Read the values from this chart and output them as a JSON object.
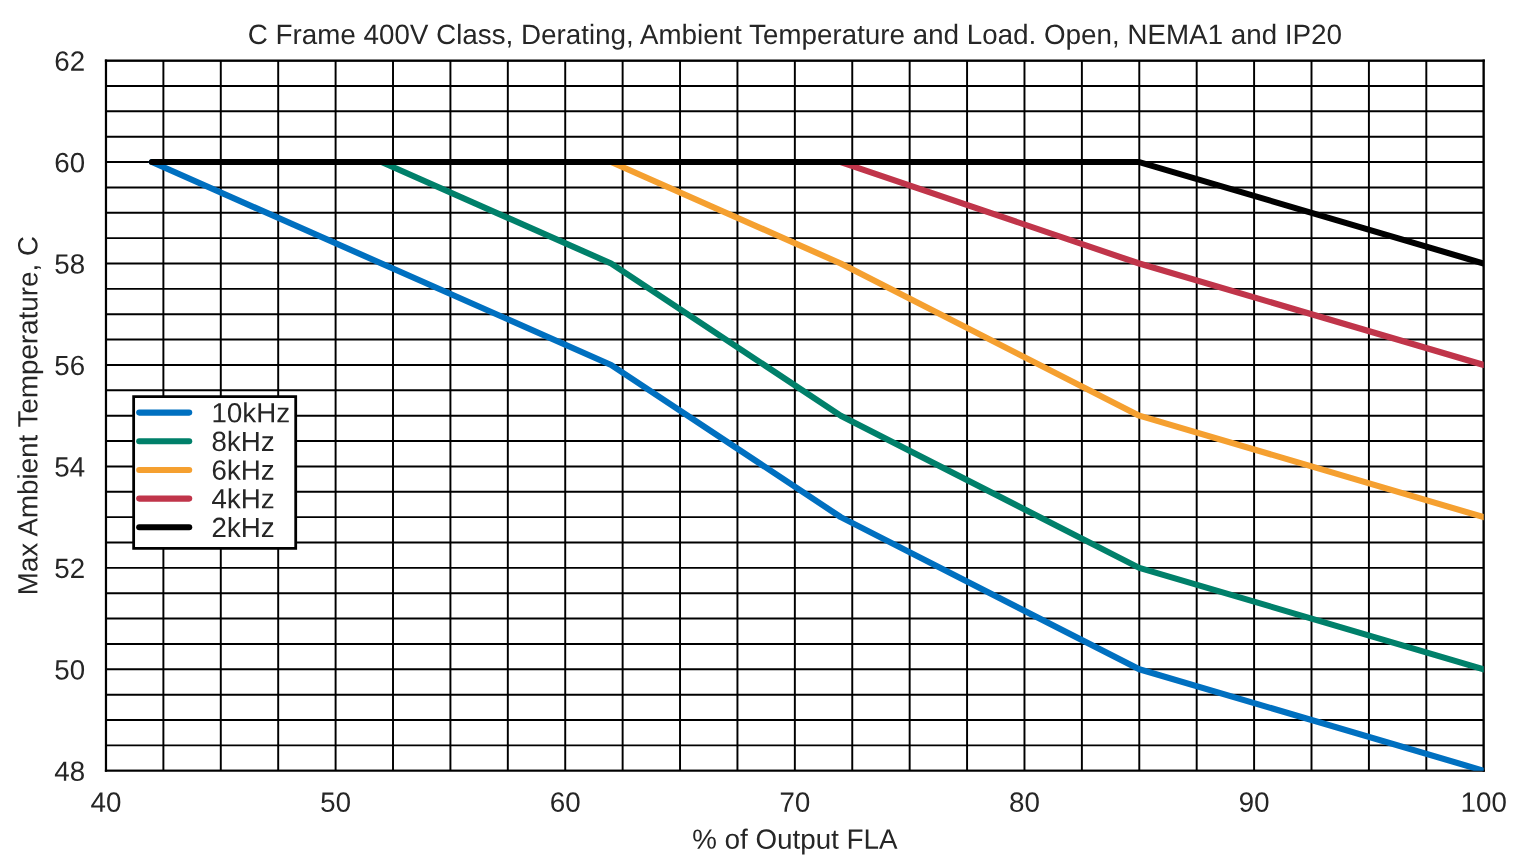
{
  "chart_data": {
    "type": "line",
    "title": "C Frame 400V Class, Derating, Ambient Temperature and Load. Open, NEMA1 and IP20",
    "xlabel": "% of Output FLA",
    "ylabel": "Max Ambient Temperature, C",
    "xlim": [
      40,
      100
    ],
    "xticks": [
      40,
      50,
      60,
      70,
      80,
      90,
      100
    ],
    "ylim": [
      48,
      62
    ],
    "yticks": [
      48,
      50,
      52,
      54,
      56,
      58,
      60,
      62
    ],
    "grid": true,
    "legend": "left",
    "marker": "none",
    "line_style": "solid",
    "series": [
      {
        "name": "10kHz",
        "color": "#0070c0",
        "x": [
          42,
          62,
          72,
          85,
          100
        ],
        "values": [
          60,
          56,
          53,
          50,
          48
        ]
      },
      {
        "name": "8kHz",
        "color": "#00806a",
        "x": [
          52,
          62,
          72,
          85,
          100
        ],
        "values": [
          60,
          58,
          55,
          52,
          50
        ]
      },
      {
        "name": "6kHz",
        "color": "#f5a030",
        "x": [
          62,
          72,
          85,
          100
        ],
        "values": [
          60,
          58,
          55,
          53
        ]
      },
      {
        "name": "4kHz",
        "color": "#c0354a",
        "x": [
          72,
          85,
          100
        ],
        "values": [
          60,
          58,
          56
        ]
      },
      {
        "name": "2kHz",
        "color": "#000000",
        "x": [
          42,
          85,
          100
        ],
        "values": [
          60,
          60,
          58
        ]
      }
    ]
  }
}
